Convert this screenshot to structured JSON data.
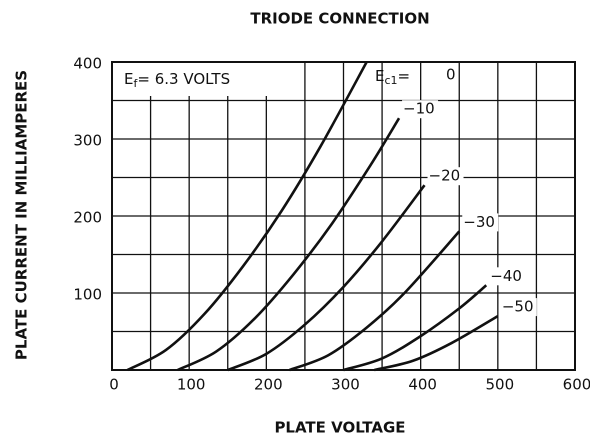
{
  "chart_data": {
    "type": "line",
    "title": "TRIODE CONNECTION",
    "x_label": "PLATE VOLTAGE",
    "y_label": "PLATE CURRENT IN MILLIAMPERES",
    "note_parts": [
      "E",
      "f",
      "= 6.3 VOLTS"
    ],
    "series_prefix_parts": [
      "E",
      "c1",
      "="
    ],
    "xlim": [
      0,
      600
    ],
    "ylim": [
      0,
      400
    ],
    "xticks": [
      0,
      100,
      200,
      300,
      400,
      500,
      600
    ],
    "yticks": [
      100,
      200,
      300,
      400
    ],
    "xgrid": [
      0,
      50,
      100,
      150,
      200,
      250,
      300,
      350,
      400,
      450,
      500,
      550,
      600
    ],
    "ygrid": [
      0,
      50,
      100,
      150,
      200,
      250,
      300,
      350,
      400
    ],
    "grid": true,
    "series": [
      {
        "name": "0",
        "color": "#111111",
        "x": [
          20,
          70,
          120,
          170,
          220,
          270,
          330
        ],
        "values": [
          0,
          26,
          73,
          135,
          207,
          290,
          400
        ]
      },
      {
        "name": "−10",
        "color": "#111111",
        "x": [
          85,
          135,
          185,
          235,
          285,
          335,
          372
        ],
        "values": [
          0,
          24,
          67,
          124,
          190,
          266,
          327
        ]
      },
      {
        "name": "−20",
        "color": "#111111",
        "x": [
          150,
          200,
          250,
          300,
          350,
          405
        ],
        "values": [
          0,
          21,
          59,
          108,
          167,
          240
        ]
      },
      {
        "name": "−30",
        "color": "#111111",
        "x": [
          230,
          280,
          330,
          380,
          450
        ],
        "values": [
          0,
          19,
          55,
          101,
          180
        ]
      },
      {
        "name": "−40",
        "color": "#111111",
        "x": [
          300,
          350,
          400,
          450,
          485
        ],
        "values": [
          0,
          15,
          44,
          80,
          110
        ]
      },
      {
        "name": "−50",
        "color": "#111111",
        "x": [
          340,
          390,
          440,
          500
        ],
        "values": [
          0,
          12,
          35,
          70
        ]
      }
    ]
  }
}
